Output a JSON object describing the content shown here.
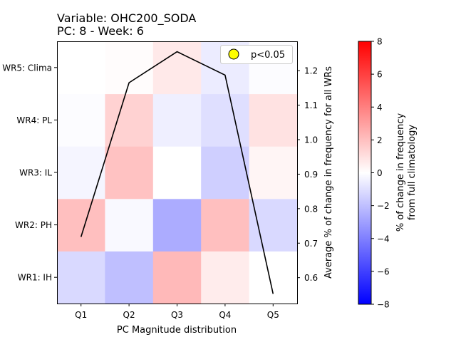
{
  "chart_data": {
    "type": "heatmap",
    "title_line1": "Variable: OHC200_SODA",
    "title_line2": "PC: 8 - Week: 6",
    "xlabel": "PC Magnitude distribution",
    "x_categories": [
      "Q1",
      "Q2",
      "Q3",
      "Q4",
      "Q5"
    ],
    "y_categories": [
      "WR1: IH",
      "WR2: PH",
      "WR3: IL",
      "WR4: PL",
      "WR5: Clima"
    ],
    "heatmap_values": [
      [
        -1.2,
        -2.0,
        2.2,
        0.6,
        0.0
      ],
      [
        2.0,
        -0.2,
        -2.6,
        2.0,
        -1.2
      ],
      [
        -0.3,
        1.9,
        0.0,
        -1.5,
        0.3
      ],
      [
        -0.1,
        1.4,
        -0.5,
        -1.0,
        0.9
      ],
      [
        0.0,
        0.1,
        0.7,
        -0.6,
        -0.1
      ]
    ],
    "colorbar": {
      "label_line1": "% of change in frequency",
      "label_line2": "from full climatology",
      "vmin": -8,
      "vmax": 8,
      "ticks": [
        -8,
        -6,
        -4,
        -2,
        0,
        2,
        4,
        6,
        8
      ],
      "tick_labels": [
        "−8",
        "−6",
        "−4",
        "−2",
        "0",
        "2",
        "4",
        "6",
        "8"
      ]
    },
    "right_axis": {
      "label": "Average % of change in frequency for all WRs",
      "ylim": [
        0.525,
        1.285
      ],
      "ticks": [
        0.6,
        0.7,
        0.8,
        0.9,
        1.0,
        1.1,
        1.2
      ],
      "tick_labels": [
        "0.6",
        "0.7",
        "0.8",
        "0.9",
        "1.0",
        "1.1",
        "1.2"
      ]
    },
    "line_series": {
      "values": [
        0.718,
        1.165,
        1.255,
        1.187,
        0.553
      ]
    },
    "legend": {
      "label": "p<0.05",
      "position": "top-right",
      "marker_color": "#ffff00"
    }
  }
}
